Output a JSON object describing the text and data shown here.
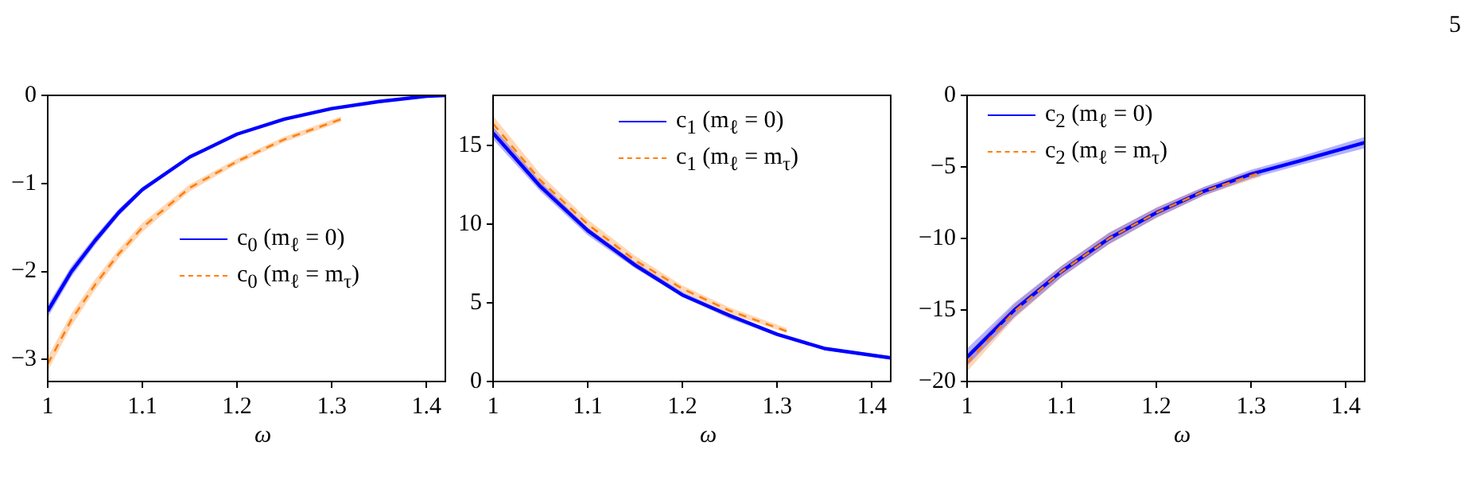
{
  "chart_data": [
    {
      "type": "line",
      "xlabel": "ω",
      "xlim": [
        1,
        1.42
      ],
      "xticks": [
        1,
        1.1,
        1.2,
        1.3,
        1.4
      ],
      "ylim": [
        -3.25,
        0
      ],
      "yticks": [
        -3,
        -2,
        -1,
        0
      ],
      "grid": false,
      "legend": "right",
      "marker": "none",
      "series": [
        {
          "name": "c$_{0}$ (m$_{ℓ}$ = 0)",
          "color": "#0000ff",
          "line_style": "solid",
          "x": [
            1,
            1.025,
            1.05,
            1.075,
            1.1,
            1.15,
            1.2,
            1.25,
            1.3,
            1.35,
            1.4,
            1.42
          ],
          "values": [
            -2.45,
            -2.0,
            -1.65,
            -1.33,
            -1.07,
            -0.7,
            -0.44,
            -0.27,
            -0.15,
            -0.07,
            -0.01,
            0
          ],
          "lower": [
            -2.52,
            -2.06,
            -1.7,
            -1.37,
            -1.1,
            -0.72,
            -0.45,
            -0.28,
            -0.155,
            -0.075,
            -0.015,
            -0.005
          ],
          "upper": [
            -2.38,
            -1.94,
            -1.6,
            -1.29,
            -1.04,
            -0.68,
            -0.43,
            -0.26,
            -0.145,
            -0.065,
            -0.005,
            0
          ]
        },
        {
          "name": "c$_{0}$ (m$_{ℓ}$ = m$_{τ}$)",
          "color": "#ff7f0e",
          "line_style": "dashed",
          "x": [
            1,
            1.025,
            1.05,
            1.075,
            1.1,
            1.15,
            1.2,
            1.25,
            1.31
          ],
          "values": [
            -3.05,
            -2.55,
            -2.15,
            -1.8,
            -1.5,
            -1.05,
            -0.75,
            -0.5,
            -0.27
          ],
          "lower": [
            -3.13,
            -2.62,
            -2.21,
            -1.85,
            -1.55,
            -1.09,
            -0.78,
            -0.53,
            -0.3
          ],
          "upper": [
            -2.97,
            -2.48,
            -2.09,
            -1.75,
            -1.45,
            -1.01,
            -0.72,
            -0.47,
            -0.24
          ]
        }
      ]
    },
    {
      "type": "line",
      "xlabel": "ω",
      "xlim": [
        1,
        1.42
      ],
      "xticks": [
        1,
        1.1,
        1.2,
        1.3,
        1.4
      ],
      "ylim": [
        0,
        18.2
      ],
      "yticks": [
        0,
        5,
        10,
        15
      ],
      "grid": false,
      "legend": "top right",
      "marker": "none",
      "series": [
        {
          "name": "c$_{1}$ (m$_{ℓ}$ = 0)",
          "color": "#0000ff",
          "line_style": "solid",
          "x": [
            1,
            1.05,
            1.1,
            1.15,
            1.2,
            1.25,
            1.3,
            1.35,
            1.42
          ],
          "values": [
            15.8,
            12.4,
            9.6,
            7.4,
            5.5,
            4.2,
            3.0,
            2.1,
            1.5
          ],
          "lower": [
            15.4,
            12.1,
            9.3,
            7.2,
            5.4,
            4.0,
            2.9,
            2.0,
            1.4
          ],
          "upper": [
            16.2,
            12.7,
            9.8,
            7.6,
            5.7,
            4.3,
            3.1,
            2.2,
            1.6
          ]
        },
        {
          "name": "c$_{1}$ (m$_{ℓ}$ = m$_{τ}$)",
          "color": "#ff7f0e",
          "line_style": "dashed",
          "x": [
            1,
            1.05,
            1.1,
            1.15,
            1.2,
            1.25,
            1.31
          ],
          "values": [
            16.4,
            12.8,
            10.0,
            7.7,
            5.9,
            4.5,
            3.2
          ],
          "lower": [
            15.9,
            12.4,
            9.7,
            7.5,
            5.7,
            4.3,
            3.1
          ],
          "upper": [
            16.9,
            13.2,
            10.3,
            8.0,
            6.1,
            4.7,
            3.4
          ]
        }
      ]
    },
    {
      "type": "line",
      "xlabel": "ω",
      "xlim": [
        1,
        1.42
      ],
      "xticks": [
        1,
        1.1,
        1.2,
        1.3,
        1.4
      ],
      "ylim": [
        -20,
        0
      ],
      "yticks": [
        -20,
        -15,
        -10,
        -5,
        0
      ],
      "grid": false,
      "legend": "top left",
      "marker": "none",
      "annotations": [
        "5"
      ],
      "series": [
        {
          "name": "c$_{2}$ (m$_{ℓ}$ = 0)",
          "color": "#0000ff",
          "line_style": "solid",
          "x": [
            1,
            1.05,
            1.1,
            1.15,
            1.2,
            1.25,
            1.3,
            1.35,
            1.42
          ],
          "values": [
            -18.3,
            -15.0,
            -12.3,
            -10.0,
            -8.2,
            -6.7,
            -5.5,
            -4.6,
            -3.3
          ],
          "lower": [
            -18.9,
            -15.5,
            -12.7,
            -10.4,
            -8.55,
            -7.0,
            -5.8,
            -4.9,
            -3.7
          ],
          "upper": [
            -17.7,
            -14.5,
            -11.9,
            -9.6,
            -7.85,
            -6.4,
            -5.2,
            -4.3,
            -2.9
          ]
        },
        {
          "name": "c$_{2}$ (m$_{ℓ}$ = m$_{τ}$)",
          "color": "#ff7f0e",
          "line_style": "dashed",
          "x": [
            1,
            1.05,
            1.1,
            1.15,
            1.2,
            1.25,
            1.31
          ],
          "values": [
            -18.7,
            -15.1,
            -12.3,
            -10.0,
            -8.2,
            -6.7,
            -5.4
          ],
          "lower": [
            -19.3,
            -15.6,
            -12.7,
            -10.4,
            -8.55,
            -7.0,
            -5.7
          ],
          "upper": [
            -18.1,
            -14.6,
            -11.9,
            -9.6,
            -7.85,
            -6.4,
            -5.1
          ]
        }
      ]
    }
  ]
}
